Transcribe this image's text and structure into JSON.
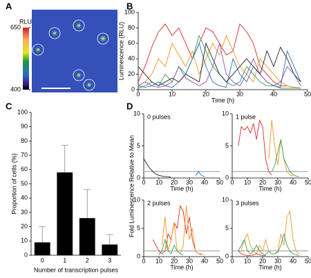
{
  "panel_labels": [
    "A",
    "B",
    "C",
    "D"
  ],
  "panel_d_ylabel": "Fold Luminescence Relative to Mean",
  "chart_data": [
    {
      "type": "image",
      "colorbar_title": "RLU",
      "clim": [
        400,
        650
      ],
      "cticks": [
        650,
        400
      ]
    },
    {
      "type": "line",
      "xlabel": "Time (h)",
      "ylabel": "Luminescence (RLU)",
      "x": [
        0,
        2,
        4,
        6,
        8,
        10,
        12,
        14,
        16,
        18,
        20,
        22,
        24,
        26,
        28,
        30,
        32,
        34,
        36,
        38,
        40,
        42,
        44,
        46,
        48
      ],
      "xlim": [
        0,
        50
      ],
      "xticks": [
        0,
        10,
        20,
        30,
        40,
        50
      ],
      "ylim": [
        0,
        100
      ],
      "yticks": [
        0,
        20,
        40,
        60,
        80,
        100
      ],
      "series": [
        {
          "color": "#d62728",
          "values": [
            10,
            30,
            55,
            75,
            85,
            70,
            80,
            60,
            40,
            60,
            80,
            75,
            60,
            45,
            50,
            85,
            75,
            60,
            30,
            20,
            10,
            5,
            5,
            3,
            2
          ]
        },
        {
          "color": "#f0961e",
          "values": [
            5,
            10,
            20,
            40,
            30,
            60,
            45,
            30,
            50,
            20,
            40,
            60,
            45,
            70,
            50,
            30,
            20,
            10,
            40,
            30,
            20,
            10,
            5,
            3,
            2
          ]
        },
        {
          "color": "#2ca05a",
          "values": [
            2,
            5,
            10,
            5,
            20,
            10,
            30,
            20,
            40,
            70,
            50,
            30,
            20,
            10,
            5,
            10,
            30,
            20,
            10,
            5,
            5,
            2,
            2,
            2,
            2
          ]
        },
        {
          "color": "#2b6fc0",
          "values": [
            5,
            3,
            5,
            10,
            5,
            3,
            10,
            20,
            40,
            60,
            30,
            10,
            5,
            3,
            40,
            20,
            10,
            30,
            20,
            10,
            5,
            3,
            50,
            30,
            10
          ]
        },
        {
          "color": "#222222",
          "values": [
            30,
            20,
            10,
            5,
            10,
            15,
            10,
            20,
            15,
            10,
            60,
            40,
            20,
            10,
            20,
            30,
            40,
            30,
            20,
            50,
            30,
            55,
            40,
            20,
            10
          ]
        },
        {
          "color": "#8a4fb0",
          "values": [
            5,
            10,
            5,
            3,
            5,
            10,
            30,
            15,
            10,
            5,
            10,
            30,
            60,
            20,
            10,
            5,
            20,
            40,
            20,
            10,
            5,
            10,
            30,
            20,
            5
          ]
        }
      ]
    },
    {
      "type": "bar",
      "xlabel": "Number of transcription pulses",
      "ylabel": "Proportion of cells (%)",
      "categories": [
        "0",
        "1",
        "2",
        "3"
      ],
      "values": [
        9,
        58,
        26,
        7.5
      ],
      "errors": [
        11,
        19,
        20,
        7
      ],
      "color": "#000000",
      "ylim": [
        0,
        100
      ],
      "yticks": [
        0,
        10,
        20,
        30,
        40,
        50,
        60,
        70,
        80,
        90,
        100
      ]
    },
    {
      "type": "line",
      "title": "0 pulses",
      "xlabel": "Time (h)",
      "threshold": 1,
      "x": [
        0,
        2,
        4,
        6,
        8,
        10,
        12,
        14,
        16,
        18,
        20,
        22,
        24,
        26,
        28,
        30,
        32,
        34,
        36,
        38,
        40,
        42,
        44,
        46,
        48,
        50
      ],
      "xlim": [
        0,
        50
      ],
      "xticks": [
        0,
        10,
        20,
        30,
        40,
        50
      ],
      "ylim": [
        0,
        10
      ],
      "yticks": [
        0,
        5,
        10
      ],
      "series": [
        {
          "color": "#222222",
          "values": [
            3,
            2.2,
            1.5,
            1,
            0.6,
            0.4,
            0.3,
            0.2,
            0.2,
            0.1,
            null,
            null,
            null,
            null,
            null,
            null,
            null,
            null,
            null,
            null,
            null,
            null,
            null,
            null,
            null,
            null
          ]
        },
        {
          "color": "#2b6fc0",
          "values": [
            null,
            null,
            null,
            null,
            null,
            null,
            null,
            null,
            null,
            null,
            null,
            null,
            null,
            null,
            null,
            null,
            null,
            0.3,
            1,
            0.4,
            0.2,
            null,
            null,
            null,
            null,
            null
          ]
        }
      ]
    },
    {
      "type": "line",
      "title": "1 pulse",
      "xlabel": "Time (h)",
      "threshold": 1,
      "x": [
        0,
        2,
        4,
        6,
        8,
        10,
        12,
        14,
        16,
        18,
        20,
        22,
        24,
        26,
        28,
        30,
        32,
        34,
        36,
        38,
        40,
        42,
        44,
        46,
        48,
        50
      ],
      "xlim": [
        0,
        50
      ],
      "xticks": [
        0,
        10,
        20,
        30,
        40,
        50
      ],
      "ylim": [
        0,
        10
      ],
      "yticks": [
        0,
        5,
        10
      ],
      "series": [
        {
          "color": "#d62728",
          "values": [
            null,
            null,
            5,
            8,
            7.5,
            8,
            7,
            8.5,
            6,
            9,
            8,
            3,
            1,
            0.5,
            null,
            null,
            null,
            null,
            null,
            null,
            null,
            null,
            null,
            null,
            null,
            null
          ]
        },
        {
          "color": "#f0961e",
          "values": [
            null,
            null,
            null,
            null,
            null,
            null,
            null,
            null,
            null,
            null,
            null,
            null,
            3,
            9,
            5,
            2,
            6,
            3,
            1,
            0.5,
            0.3,
            null,
            null,
            null,
            null,
            null
          ]
        },
        {
          "color": "#2ca05a",
          "values": [
            null,
            null,
            null,
            null,
            null,
            null,
            null,
            null,
            null,
            null,
            null,
            null,
            null,
            1,
            2,
            4,
            6,
            3,
            2,
            1,
            0.5,
            0.3,
            0.2,
            null,
            null,
            null
          ]
        }
      ]
    },
    {
      "type": "line",
      "title": "2 pulses",
      "xlabel": "Time (h)",
      "threshold": 1,
      "x": [
        0,
        2,
        4,
        6,
        8,
        10,
        12,
        14,
        16,
        18,
        20,
        22,
        24,
        26,
        28,
        30,
        32,
        34,
        36,
        38,
        40,
        42,
        44,
        46,
        48,
        50
      ],
      "xlim": [
        0,
        50
      ],
      "xticks": [
        0,
        10,
        20,
        30,
        40,
        50
      ],
      "ylim": [
        0,
        10
      ],
      "yticks": [
        0,
        5,
        10
      ],
      "series": [
        {
          "color": "#d62728",
          "values": [
            null,
            null,
            null,
            3,
            2,
            1,
            0.5,
            1,
            4,
            3,
            6,
            5,
            9,
            8,
            4,
            7,
            3,
            1,
            0.5,
            0.3,
            null,
            null,
            null,
            null,
            null,
            null
          ]
        },
        {
          "color": "#f0961e",
          "values": [
            null,
            null,
            null,
            null,
            null,
            null,
            2,
            7,
            1,
            3,
            6,
            1,
            0.5,
            2,
            9,
            3,
            5,
            1,
            0.5,
            0.5,
            0.3,
            null,
            null,
            null,
            null,
            null
          ]
        },
        {
          "color": "#2ca05a",
          "values": [
            null,
            null,
            null,
            null,
            null,
            0.3,
            1,
            3,
            1,
            0.5,
            2,
            1,
            0.5,
            0.3,
            null,
            null,
            null,
            null,
            null,
            null,
            null,
            null,
            null,
            null,
            null,
            null
          ]
        }
      ]
    },
    {
      "type": "line",
      "title": "3 pulses",
      "xlabel": "Time (h)",
      "threshold": 1,
      "x": [
        0,
        2,
        4,
        6,
        8,
        10,
        12,
        14,
        16,
        18,
        20,
        22,
        24,
        26,
        28,
        30,
        32,
        34,
        36,
        38,
        40,
        42,
        44,
        46,
        48,
        50
      ],
      "xlim": [
        0,
        50
      ],
      "xticks": [
        0,
        10,
        20,
        30,
        40,
        50
      ],
      "ylim": [
        0,
        10
      ],
      "yticks": [
        0,
        5,
        10
      ],
      "series": [
        {
          "color": "#f0961e",
          "values": [
            null,
            null,
            null,
            1,
            3,
            4,
            2,
            1,
            0.5,
            2,
            1,
            3,
            1,
            0.5,
            0.5,
            1,
            4,
            2,
            7,
            8,
            3,
            1,
            0.5,
            null,
            null,
            null
          ]
        },
        {
          "color": "#2ca05a",
          "values": [
            null,
            null,
            1,
            2,
            3,
            1,
            0.5,
            1,
            2,
            1,
            0.5,
            0.3,
            1,
            0.5,
            0.5,
            0.8,
            2,
            4,
            2,
            1,
            0.5,
            0.3,
            0.2,
            null,
            null,
            null
          ]
        },
        {
          "color": "#d62728",
          "values": [
            null,
            null,
            1,
            0.5,
            0.3,
            0.2,
            0.2,
            0.3,
            0.5,
            0.3,
            0.2,
            0.2,
            null,
            null,
            null,
            null,
            null,
            null,
            null,
            null,
            null,
            null,
            null,
            null,
            null,
            null
          ]
        }
      ]
    }
  ]
}
